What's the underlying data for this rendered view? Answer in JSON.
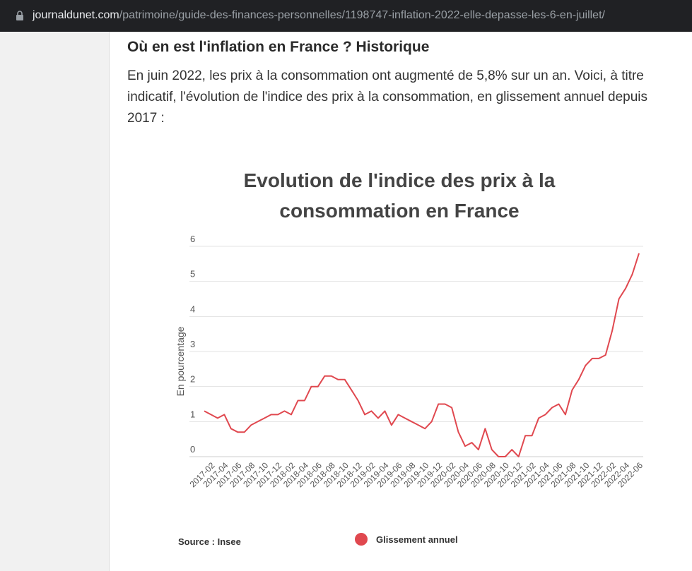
{
  "browser": {
    "url_domain": "journaldunet.com",
    "url_path": "/patrimoine/guide-des-finances-personnelles/1198747-inflation-2022-elle-depasse-les-6-en-juillet/"
  },
  "article": {
    "heading": "Où en est l'inflation en France ? Historique",
    "paragraph": "En juin 2022, les prix à la consommation ont augmenté de 5,8% sur un an. Voici, à titre indicatif, l'évolution de l'indice des prix à la consommation, en glissement annuel depuis 2017 :"
  },
  "chart_data": {
    "type": "line",
    "title_line1": "Evolution de l'indice des prix à la",
    "title_line2": "consommation en France",
    "ylabel": "En pourcentage",
    "xlabel": "",
    "ylim": [
      0,
      6
    ],
    "yticks": [
      0,
      1,
      2,
      3,
      4,
      5,
      6
    ],
    "grid": true,
    "legend_position": "bottom",
    "source": "Source : Insee",
    "x_tick_labels": [
      "2017-02",
      "2017-04",
      "2017-06",
      "2017-08",
      "2017-10",
      "2017-12",
      "2018-02",
      "2018-04",
      "2018-06",
      "2018-08",
      "2018-10",
      "2018-12",
      "2019-02",
      "2019-04",
      "2019-06",
      "2019-08",
      "2019-10",
      "2019-12",
      "2020-02",
      "2020-04",
      "2020-06",
      "2020-08",
      "2020-10",
      "2020-12",
      "2021-02",
      "2021-04",
      "2021-06",
      "2021-08",
      "2021-10",
      "2021-12",
      "2022-02",
      "2022-04",
      "2022-06"
    ],
    "x": [
      "2017-01",
      "2017-02",
      "2017-03",
      "2017-04",
      "2017-05",
      "2017-06",
      "2017-07",
      "2017-08",
      "2017-09",
      "2017-10",
      "2017-11",
      "2017-12",
      "2018-01",
      "2018-02",
      "2018-03",
      "2018-04",
      "2018-05",
      "2018-06",
      "2018-07",
      "2018-08",
      "2018-09",
      "2018-10",
      "2018-11",
      "2018-12",
      "2019-01",
      "2019-02",
      "2019-03",
      "2019-04",
      "2019-05",
      "2019-06",
      "2019-07",
      "2019-08",
      "2019-09",
      "2019-10",
      "2019-11",
      "2019-12",
      "2020-01",
      "2020-02",
      "2020-03",
      "2020-04",
      "2020-05",
      "2020-06",
      "2020-07",
      "2020-08",
      "2020-09",
      "2020-10",
      "2020-11",
      "2020-12",
      "2021-01",
      "2021-02",
      "2021-03",
      "2021-04",
      "2021-05",
      "2021-06",
      "2021-07",
      "2021-08",
      "2021-09",
      "2021-10",
      "2021-11",
      "2021-12",
      "2022-01",
      "2022-02",
      "2022-03",
      "2022-04",
      "2022-05",
      "2022-06"
    ],
    "series": [
      {
        "name": "Glissement annuel",
        "color": "#e0484f",
        "values": [
          1.3,
          1.2,
          1.1,
          1.2,
          0.8,
          0.7,
          0.7,
          0.9,
          1.0,
          1.1,
          1.2,
          1.2,
          1.3,
          1.2,
          1.6,
          1.6,
          2.0,
          2.0,
          2.3,
          2.3,
          2.2,
          2.2,
          1.9,
          1.6,
          1.2,
          1.3,
          1.1,
          1.3,
          0.9,
          1.2,
          1.1,
          1.0,
          0.9,
          0.8,
          1.0,
          1.5,
          1.5,
          1.4,
          0.7,
          0.3,
          0.4,
          0.2,
          0.8,
          0.2,
          0.0,
          0.0,
          0.2,
          0.0,
          0.6,
          0.6,
          1.1,
          1.2,
          1.4,
          1.5,
          1.2,
          1.9,
          2.2,
          2.6,
          2.8,
          2.8,
          2.9,
          3.6,
          4.5,
          4.8,
          5.2,
          5.8
        ]
      }
    ]
  }
}
